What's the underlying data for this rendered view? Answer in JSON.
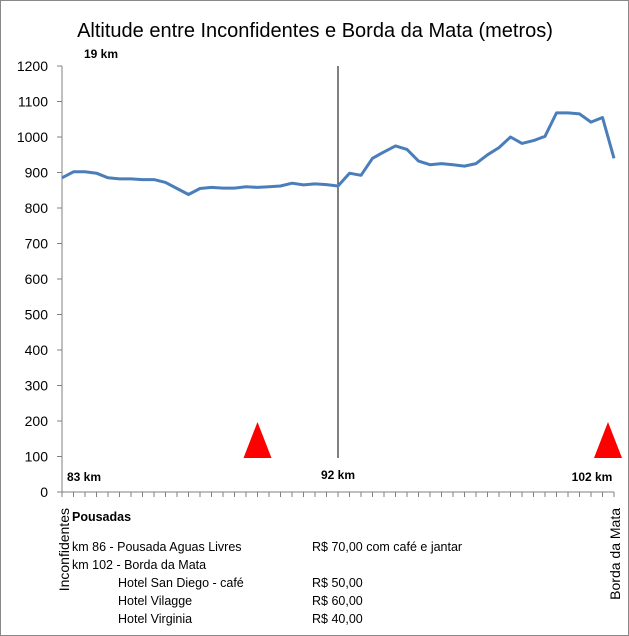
{
  "chart_data": {
    "type": "line",
    "title": "Altitude entre Inconfidentes e Borda da Mata (metros)",
    "ylim": [
      0,
      1200
    ],
    "yticks": [
      "0",
      "100",
      "200",
      "300",
      "400",
      "500",
      "600",
      "700",
      "800",
      "900",
      "1000",
      "1100",
      "1200"
    ],
    "series": [
      {
        "name": "Altitude",
        "color": "#4a7ebb",
        "values": [
          885,
          902,
          902,
          898,
          885,
          882,
          882,
          880,
          880,
          872,
          855,
          838,
          855,
          858,
          856,
          856,
          860,
          858,
          860,
          862,
          870,
          865,
          868,
          866,
          862,
          898,
          892,
          940,
          958,
          975,
          965,
          932,
          922,
          925,
          922,
          918,
          925,
          950,
          970,
          1000,
          982,
          990,
          1002,
          1068,
          1068,
          1065,
          1042,
          1055,
          940
        ]
      }
    ],
    "category_start": "Inconfidentes",
    "category_end": "Borda da Mata",
    "marker_label": "19 km",
    "marker_position": 24,
    "km_labels": [
      "83 km",
      "92 km",
      "102 km"
    ],
    "triangles": [
      {
        "position": 17,
        "color": "#ff0000"
      },
      {
        "position": 48,
        "color": "#ff0000"
      }
    ]
  },
  "pousadas": {
    "heading": "Pousadas",
    "rows": [
      {
        "col1": "km 86 - Pousada Aguas Livres",
        "col2": "R$ 70,00 com café e jantar",
        "indent": false
      },
      {
        "col1": "km 102 - Borda da Mata",
        "col2": "",
        "indent": false
      },
      {
        "col1": "Hotel San Diego - café",
        "col2": "R$ 50,00",
        "indent": true
      },
      {
        "col1": "Hotel Vilagge",
        "col2": "R$ 60,00",
        "indent": true
      },
      {
        "col1": "Hotel Virginia",
        "col2": "R$ 40,00",
        "indent": true
      }
    ]
  }
}
